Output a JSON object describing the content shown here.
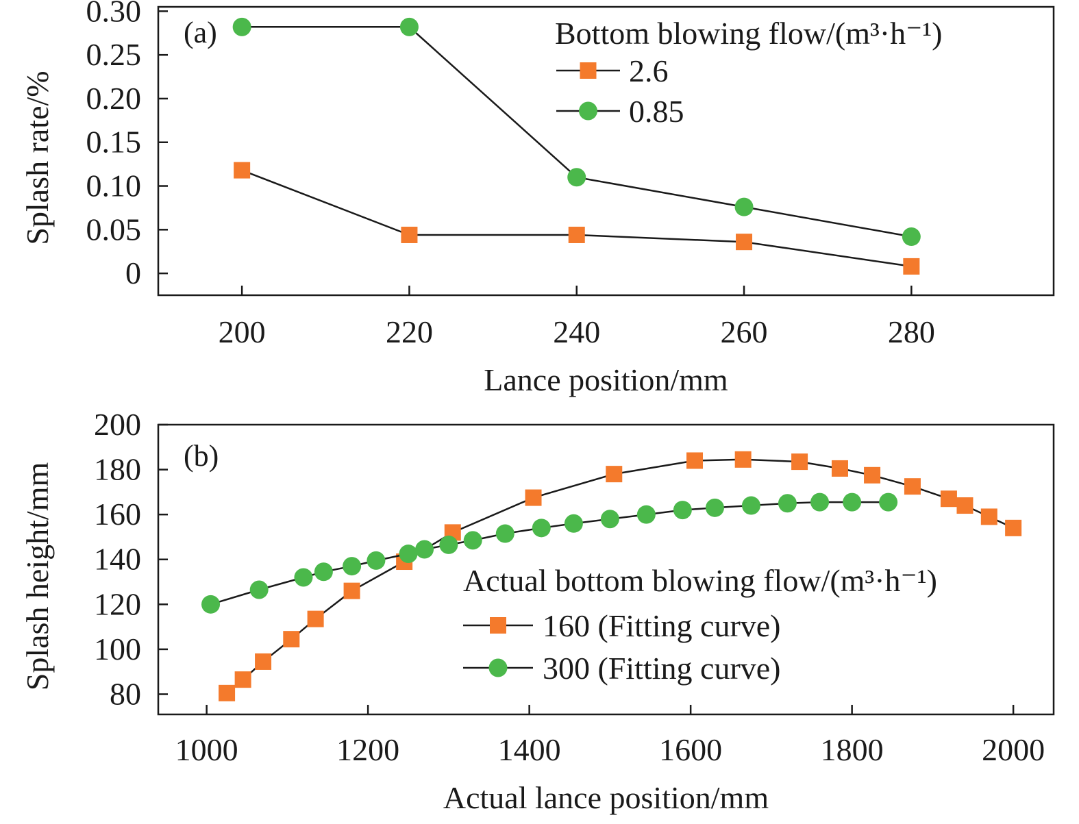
{
  "chart_data": [
    {
      "type": "line",
      "panel_label": "(a)",
      "xlabel": "Lance position/mm",
      "ylabel": "Splash rate/%",
      "xlim": [
        190,
        297
      ],
      "ylim": [
        -0.025,
        0.305
      ],
      "xticks": [
        200,
        220,
        240,
        260,
        280
      ],
      "xtick_labels": [
        "200",
        "220",
        "240",
        "260",
        "280"
      ],
      "yticks": [
        0,
        0.05,
        0.1,
        0.15,
        0.2,
        0.25,
        0.3
      ],
      "ytick_labels": [
        "0",
        "0.05",
        "0.10",
        "0.15",
        "0.20",
        "0.25",
        "0.30"
      ],
      "legend_title": "Bottom blowing flow/(m³·h⁻¹)",
      "legend_position": "top-right",
      "series": [
        {
          "name": "2.6",
          "marker": "square",
          "color": "#f47a2c",
          "x": [
            200,
            220,
            240,
            260,
            280
          ],
          "values": [
            0.118,
            0.044,
            0.044,
            0.036,
            0.008
          ]
        },
        {
          "name": "0.85",
          "marker": "circle",
          "color": "#4bb84b",
          "x": [
            200,
            220,
            240,
            260,
            280
          ],
          "values": [
            0.282,
            0.282,
            0.11,
            0.076,
            0.042
          ]
        }
      ]
    },
    {
      "type": "line",
      "panel_label": "(b)",
      "xlabel": "Actual lance position/mm",
      "ylabel": "Splash height/mm",
      "xlim": [
        940,
        2050
      ],
      "ylim": [
        71,
        200
      ],
      "xticks": [
        1000,
        1200,
        1400,
        1600,
        1800,
        2000
      ],
      "xtick_labels": [
        "1000",
        "1200",
        "1400",
        "1600",
        "1800",
        "2000"
      ],
      "yticks": [
        80,
        100,
        120,
        140,
        160,
        180,
        200
      ],
      "ytick_labels": [
        "80",
        "100",
        "120",
        "140",
        "160",
        "180",
        "200"
      ],
      "legend_title": "Actual bottom blowing flow/(m³·h⁻¹)",
      "legend_position": "bottom-right",
      "series": [
        {
          "name": "160 (Fitting curve)",
          "marker": "square",
          "color": "#f47a2c",
          "x": [
            1025,
            1045,
            1070,
            1105,
            1135,
            1180,
            1245,
            1305,
            1405,
            1505,
            1605,
            1665,
            1735,
            1785,
            1825,
            1875,
            1920,
            1940,
            1970,
            2000
          ],
          "values": [
            80.5,
            86.5,
            94.5,
            104.5,
            113.5,
            126,
            139,
            152,
            167.5,
            178,
            184,
            184.5,
            183.5,
            180.5,
            177.5,
            172.5,
            167,
            164,
            159,
            154
          ]
        },
        {
          "name": "300 (Fitting curve)",
          "marker": "circle",
          "color": "#4bb84b",
          "x": [
            1005,
            1065,
            1120,
            1145,
            1180,
            1210,
            1250,
            1270,
            1300,
            1330,
            1370,
            1415,
            1455,
            1500,
            1545,
            1590,
            1630,
            1675,
            1720,
            1760,
            1800,
            1845
          ],
          "values": [
            120,
            126.5,
            132,
            134.5,
            137,
            139.5,
            142.5,
            144.5,
            146.5,
            148.5,
            151.5,
            154,
            156,
            158,
            160,
            162,
            163,
            164,
            165,
            165.5,
            165.5,
            165.5
          ]
        }
      ]
    }
  ]
}
